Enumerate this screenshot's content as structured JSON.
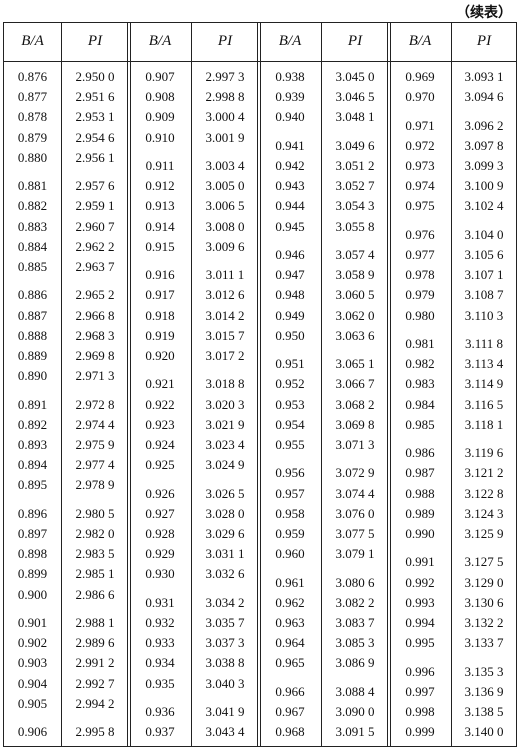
{
  "note": "（续表）",
  "columns": [
    {
      "header": [
        "B/A",
        "PI"
      ],
      "groups": [
        [
          [
            "0.876",
            "2.950 0"
          ],
          [
            "0.877",
            "2.951 6"
          ],
          [
            "0.878",
            "2.953 1"
          ],
          [
            "0.879",
            "2.954 6"
          ],
          [
            "0.880",
            "2.956 1"
          ]
        ],
        [
          [
            "0.881",
            "2.957 6"
          ],
          [
            "0.882",
            "2.959 1"
          ],
          [
            "0.883",
            "2.960 7"
          ],
          [
            "0.884",
            "2.962 2"
          ],
          [
            "0.885",
            "2.963 7"
          ]
        ],
        [
          [
            "0.886",
            "2.965 2"
          ],
          [
            "0.887",
            "2.966 8"
          ],
          [
            "0.888",
            "2.968 3"
          ],
          [
            "0.889",
            "2.969 8"
          ],
          [
            "0.890",
            "2.971 3"
          ]
        ],
        [
          [
            "0.891",
            "2.972 8"
          ],
          [
            "0.892",
            "2.974 4"
          ],
          [
            "0.893",
            "2.975 9"
          ],
          [
            "0.894",
            "2.977 4"
          ],
          [
            "0.895",
            "2.978 9"
          ]
        ],
        [
          [
            "0.896",
            "2.980 5"
          ],
          [
            "0.897",
            "2.982 0"
          ],
          [
            "0.898",
            "2.983 5"
          ],
          [
            "0.899",
            "2.985 1"
          ],
          [
            "0.900",
            "2.986 6"
          ]
        ],
        [
          [
            "0.901",
            "2.988 1"
          ],
          [
            "0.902",
            "2.989 6"
          ],
          [
            "0.903",
            "2.991 2"
          ],
          [
            "0.904",
            "2.992 7"
          ],
          [
            "0.905",
            "2.994 2"
          ]
        ],
        [
          [
            "0.906",
            "2.995 8"
          ]
        ]
      ]
    },
    {
      "header": [
        "B/A",
        "PI"
      ],
      "groups": [
        [
          [
            "0.907",
            "2.997 3"
          ],
          [
            "0.908",
            "2.998 8"
          ],
          [
            "0.909",
            "3.000 4"
          ],
          [
            "0.910",
            "3.001 9"
          ]
        ],
        [
          [
            "0.911",
            "3.003 4"
          ],
          [
            "0.912",
            "3.005 0"
          ],
          [
            "0.913",
            "3.006 5"
          ],
          [
            "0.914",
            "3.008 0"
          ],
          [
            "0.915",
            "3.009 6"
          ]
        ],
        [
          [
            "0.916",
            "3.011 1"
          ],
          [
            "0.917",
            "3.012 6"
          ],
          [
            "0.918",
            "3.014 2"
          ],
          [
            "0.919",
            "3.015 7"
          ],
          [
            "0.920",
            "3.017 2"
          ]
        ],
        [
          [
            "0.921",
            "3.018 8"
          ],
          [
            "0.922",
            "3.020 3"
          ],
          [
            "0.923",
            "3.021 9"
          ],
          [
            "0.924",
            "3.023 4"
          ],
          [
            "0.925",
            "3.024 9"
          ]
        ],
        [
          [
            "0.926",
            "3.026 5"
          ],
          [
            "0.927",
            "3.028 0"
          ],
          [
            "0.928",
            "3.029 6"
          ],
          [
            "0.929",
            "3.031 1"
          ],
          [
            "0.930",
            "3.032 6"
          ]
        ],
        [
          [
            "0.931",
            "3.034 2"
          ],
          [
            "0.932",
            "3.035 7"
          ],
          [
            "0.933",
            "3.037 3"
          ],
          [
            "0.934",
            "3.038 8"
          ],
          [
            "0.935",
            "3.040 3"
          ]
        ],
        [
          [
            "0.936",
            "3.041 9"
          ],
          [
            "0.937",
            "3.043 4"
          ]
        ]
      ]
    },
    {
      "header": [
        "B/A",
        "PI"
      ],
      "groups": [
        [
          [
            "0.938",
            "3.045 0"
          ],
          [
            "0.939",
            "3.046 5"
          ],
          [
            "0.940",
            "3.048 1"
          ]
        ],
        [
          [
            "0.941",
            "3.049 6"
          ],
          [
            "0.942",
            "3.051 2"
          ],
          [
            "0.943",
            "3.052 7"
          ],
          [
            "0.944",
            "3.054 3"
          ],
          [
            "0.945",
            "3.055 8"
          ]
        ],
        [
          [
            "0.946",
            "3.057 4"
          ],
          [
            "0.947",
            "3.058 9"
          ],
          [
            "0.948",
            "3.060 5"
          ],
          [
            "0.949",
            "3.062 0"
          ],
          [
            "0.950",
            "3.063 6"
          ]
        ],
        [
          [
            "0.951",
            "3.065 1"
          ],
          [
            "0.952",
            "3.066 7"
          ],
          [
            "0.953",
            "3.068 2"
          ],
          [
            "0.954",
            "3.069 8"
          ],
          [
            "0.955",
            "3.071 3"
          ]
        ],
        [
          [
            "0.956",
            "3.072 9"
          ],
          [
            "0.957",
            "3.074 4"
          ],
          [
            "0.958",
            "3.076 0"
          ],
          [
            "0.959",
            "3.077 5"
          ],
          [
            "0.960",
            "3.079 1"
          ]
        ],
        [
          [
            "0.961",
            "3.080 6"
          ],
          [
            "0.962",
            "3.082 2"
          ],
          [
            "0.963",
            "3.083 7"
          ],
          [
            "0.964",
            "3.085 3"
          ],
          [
            "0.965",
            "3.086 9"
          ]
        ],
        [
          [
            "0.966",
            "3.088 4"
          ],
          [
            "0.967",
            "3.090 0"
          ],
          [
            "0.968",
            "3.091 5"
          ]
        ]
      ]
    },
    {
      "header": [
        "B/A",
        "PI"
      ],
      "groups": [
        [
          [
            "0.969",
            "3.093 1"
          ],
          [
            "0.970",
            "3.094 6"
          ]
        ],
        [
          [
            "0.971",
            "3.096 2"
          ],
          [
            "0.972",
            "3.097 8"
          ],
          [
            "0.973",
            "3.099 3"
          ],
          [
            "0.974",
            "3.100 9"
          ],
          [
            "0.975",
            "3.102 4"
          ]
        ],
        [
          [
            "0.976",
            "3.104 0"
          ],
          [
            "0.977",
            "3.105 6"
          ],
          [
            "0.978",
            "3.107 1"
          ],
          [
            "0.979",
            "3.108 7"
          ],
          [
            "0.980",
            "3.110 3"
          ]
        ],
        [
          [
            "0.981",
            "3.111 8"
          ],
          [
            "0.982",
            "3.113 4"
          ],
          [
            "0.983",
            "3.114 9"
          ],
          [
            "0.984",
            "3.116 5"
          ],
          [
            "0.985",
            "3.118 1"
          ]
        ],
        [
          [
            "0.986",
            "3.119 6"
          ],
          [
            "0.987",
            "3.121 2"
          ],
          [
            "0.988",
            "3.122 8"
          ],
          [
            "0.989",
            "3.124 3"
          ],
          [
            "0.990",
            "3.125 9"
          ]
        ],
        [
          [
            "0.991",
            "3.127 5"
          ],
          [
            "0.992",
            "3.129 0"
          ],
          [
            "0.993",
            "3.130 6"
          ],
          [
            "0.994",
            "3.132 2"
          ],
          [
            "0.995",
            "3.133 7"
          ]
        ],
        [
          [
            "0.996",
            "3.135 3"
          ],
          [
            "0.997",
            "3.136 9"
          ],
          [
            "0.998",
            "3.138 5"
          ],
          [
            "0.999",
            "3.140 0"
          ]
        ]
      ]
    }
  ]
}
